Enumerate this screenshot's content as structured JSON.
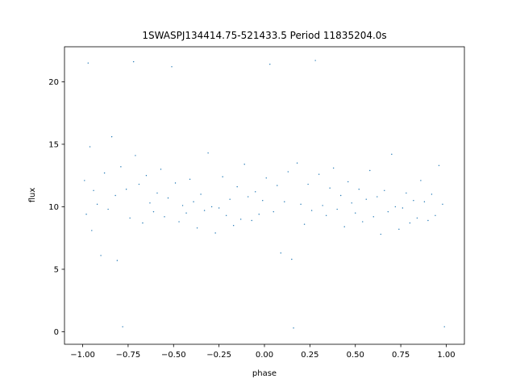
{
  "chart_data": {
    "type": "scatter",
    "title": "1SWASPJ134414.75-521433.5 Period 11835204.0s",
    "xlabel": "phase",
    "ylabel": "flux",
    "xlim": [
      -1.1,
      1.1
    ],
    "ylim": [
      -1.0,
      22.8
    ],
    "x_ticks": [
      -1.0,
      -0.75,
      -0.5,
      -0.25,
      0.0,
      0.25,
      0.5,
      0.75,
      1.0
    ],
    "x_tick_labels": [
      "−1.00",
      "−0.75",
      "−0.50",
      "−0.25",
      "0.00",
      "0.25",
      "0.50",
      "0.75",
      "1.00"
    ],
    "y_ticks": [
      0,
      5,
      10,
      15,
      20
    ],
    "y_tick_labels": [
      "0",
      "5",
      "10",
      "15",
      "20"
    ],
    "grid": false,
    "legend": "none",
    "point_color": "#1f77b4",
    "series": [
      {
        "points": [
          [
            -0.99,
            12.1
          ],
          [
            -0.98,
            9.4
          ],
          [
            -0.97,
            21.5
          ],
          [
            -0.96,
            14.8
          ],
          [
            -0.95,
            8.1
          ],
          [
            -0.94,
            11.3
          ],
          [
            -0.92,
            10.2
          ],
          [
            -0.9,
            6.1
          ],
          [
            -0.88,
            12.7
          ],
          [
            -0.86,
            9.8
          ],
          [
            -0.84,
            15.6
          ],
          [
            -0.82,
            10.9
          ],
          [
            -0.81,
            5.7
          ],
          [
            -0.79,
            13.2
          ],
          [
            -0.78,
            0.4
          ],
          [
            -0.76,
            11.4
          ],
          [
            -0.74,
            9.1
          ],
          [
            -0.72,
            21.6
          ],
          [
            -0.71,
            14.1
          ],
          [
            -0.69,
            11.8
          ],
          [
            -0.67,
            8.7
          ],
          [
            -0.65,
            12.5
          ],
          [
            -0.63,
            10.3
          ],
          [
            -0.61,
            9.6
          ],
          [
            -0.59,
            11.1
          ],
          [
            -0.57,
            13.0
          ],
          [
            -0.55,
            9.2
          ],
          [
            -0.53,
            10.7
          ],
          [
            -0.51,
            21.2
          ],
          [
            -0.49,
            11.9
          ],
          [
            -0.47,
            8.8
          ],
          [
            -0.45,
            10.1
          ],
          [
            -0.43,
            9.5
          ],
          [
            -0.41,
            12.2
          ],
          [
            -0.39,
            10.4
          ],
          [
            -0.37,
            8.3
          ],
          [
            -0.35,
            11.0
          ],
          [
            -0.33,
            9.7
          ],
          [
            -0.31,
            14.3
          ],
          [
            -0.29,
            10.0
          ],
          [
            -0.27,
            7.9
          ],
          [
            -0.25,
            9.9
          ],
          [
            -0.23,
            12.4
          ],
          [
            -0.21,
            9.3
          ],
          [
            -0.19,
            10.6
          ],
          [
            -0.17,
            8.5
          ],
          [
            -0.15,
            11.6
          ],
          [
            -0.13,
            9.0
          ],
          [
            -0.11,
            13.4
          ],
          [
            -0.09,
            10.8
          ],
          [
            -0.07,
            8.9
          ],
          [
            -0.05,
            11.2
          ],
          [
            -0.03,
            9.4
          ],
          [
            -0.01,
            10.5
          ],
          [
            0.01,
            12.3
          ],
          [
            0.03,
            21.4
          ],
          [
            0.05,
            9.6
          ],
          [
            0.07,
            11.7
          ],
          [
            0.09,
            6.3
          ],
          [
            0.11,
            10.4
          ],
          [
            0.13,
            12.8
          ],
          [
            0.15,
            5.8
          ],
          [
            0.16,
            0.3
          ],
          [
            0.18,
            13.5
          ],
          [
            0.2,
            10.2
          ],
          [
            0.22,
            8.6
          ],
          [
            0.24,
            11.8
          ],
          [
            0.26,
            9.7
          ],
          [
            0.28,
            21.7
          ],
          [
            0.3,
            12.6
          ],
          [
            0.32,
            10.1
          ],
          [
            0.34,
            9.3
          ],
          [
            0.36,
            11.5
          ],
          [
            0.38,
            13.1
          ],
          [
            0.4,
            9.8
          ],
          [
            0.42,
            10.9
          ],
          [
            0.44,
            8.4
          ],
          [
            0.46,
            12.0
          ],
          [
            0.48,
            10.3
          ],
          [
            0.5,
            9.5
          ],
          [
            0.52,
            11.4
          ],
          [
            0.54,
            8.8
          ],
          [
            0.56,
            10.6
          ],
          [
            0.58,
            12.9
          ],
          [
            0.6,
            9.2
          ],
          [
            0.62,
            10.8
          ],
          [
            0.64,
            7.8
          ],
          [
            0.66,
            11.3
          ],
          [
            0.68,
            9.6
          ],
          [
            0.7,
            14.2
          ],
          [
            0.72,
            10.0
          ],
          [
            0.74,
            8.2
          ],
          [
            0.76,
            9.9
          ],
          [
            0.78,
            11.1
          ],
          [
            0.8,
            8.7
          ],
          [
            0.82,
            10.5
          ],
          [
            0.84,
            9.1
          ],
          [
            0.86,
            12.1
          ],
          [
            0.88,
            10.4
          ],
          [
            0.9,
            8.9
          ],
          [
            0.92,
            11.0
          ],
          [
            0.94,
            9.3
          ],
          [
            0.96,
            13.3
          ],
          [
            0.98,
            10.2
          ],
          [
            0.99,
            0.4
          ]
        ]
      }
    ]
  }
}
